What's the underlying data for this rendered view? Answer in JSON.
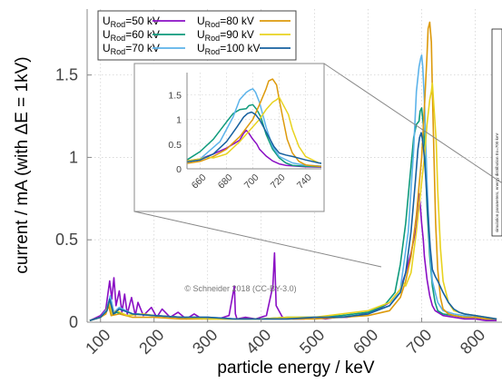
{
  "chart_data": {
    "type": "line",
    "title": "",
    "xlabel": "particle energy / keV",
    "ylabel": "current / mA (with ΔE = 1kV)",
    "xlim": [
      75,
      850
    ],
    "ylim": [
      0,
      1.9
    ],
    "x_ticks": [
      "100",
      "200",
      "300",
      "400",
      "500",
      "600",
      "700",
      "800"
    ],
    "y_ticks": [
      "0",
      "0.5",
      "1",
      "1.5"
    ],
    "grid": true,
    "legend_position": "top-left",
    "legend_columns": 2,
    "credit": "© Schneider 2018 (CC-BY-3.0)",
    "side_note": "simulation parameters, energy distribution Eo=700 keV",
    "series": [
      {
        "key": "50",
        "name_main": "U",
        "name_sub": "Rod",
        "name_value": "=50 kV",
        "color": "#8a0fc4",
        "x": [
          80,
          100,
          110,
          117,
          121,
          125,
          129,
          135,
          140,
          145,
          150,
          158,
          165,
          170,
          180,
          195,
          205,
          215,
          230,
          245,
          260,
          275,
          290,
          300,
          320,
          340,
          350,
          352,
          355,
          370,
          390,
          410,
          422,
          425,
          428,
          440,
          460,
          480,
          500,
          520,
          540,
          560,
          580,
          600,
          620,
          640,
          660,
          670,
          680,
          685,
          690,
          693,
          695,
          697,
          700,
          703,
          705,
          710,
          715,
          720,
          725,
          730,
          740,
          760,
          780,
          800,
          820,
          840
        ],
        "y": [
          0.01,
          0.04,
          0.08,
          0.25,
          0.14,
          0.27,
          0.1,
          0.19,
          0.06,
          0.17,
          0.05,
          0.15,
          0.04,
          0.12,
          0.04,
          0.09,
          0.03,
          0.08,
          0.03,
          0.06,
          0.02,
          0.05,
          0.02,
          0.03,
          0.02,
          0.04,
          0.22,
          0.05,
          0.02,
          0.03,
          0.02,
          0.04,
          0.22,
          0.42,
          0.1,
          0.03,
          0.02,
          0.02,
          0.03,
          0.02,
          0.03,
          0.03,
          0.04,
          0.06,
          0.08,
          0.12,
          0.2,
          0.3,
          0.42,
          0.5,
          0.58,
          0.72,
          0.78,
          0.72,
          0.6,
          0.5,
          0.4,
          0.26,
          0.16,
          0.1,
          0.07,
          0.06,
          0.04,
          0.03,
          0.02,
          0.02,
          0.01,
          0.01
        ]
      },
      {
        "key": "60",
        "name_main": "U",
        "name_sub": "Rod",
        "name_value": "=60 kV",
        "color": "#0e9a7c",
        "x": [
          80,
          100,
          110,
          115,
          120,
          130,
          150,
          170,
          200,
          250,
          300,
          350,
          400,
          450,
          500,
          550,
          600,
          630,
          650,
          660,
          670,
          680,
          685,
          690,
          695,
          697,
          700,
          703,
          706,
          710,
          715,
          720,
          725,
          730,
          740,
          760,
          780,
          800,
          820,
          840
        ],
        "y": [
          0.01,
          0.03,
          0.06,
          0.12,
          0.04,
          0.06,
          0.04,
          0.05,
          0.04,
          0.03,
          0.02,
          0.02,
          0.02,
          0.03,
          0.03,
          0.04,
          0.06,
          0.1,
          0.18,
          0.35,
          0.6,
          0.95,
          1.12,
          1.2,
          1.22,
          1.28,
          1.3,
          1.2,
          1.05,
          0.7,
          0.4,
          0.22,
          0.12,
          0.07,
          0.05,
          0.04,
          0.03,
          0.03,
          0.02,
          0.02
        ]
      },
      {
        "key": "70",
        "name_main": "U",
        "name_sub": "Rod",
        "name_value": "=70 kV",
        "color": "#5cb3ea",
        "x": [
          80,
          100,
          112,
          118,
          125,
          135,
          160,
          200,
          250,
          300,
          350,
          400,
          450,
          500,
          550,
          600,
          640,
          660,
          675,
          685,
          690,
          695,
          698,
          700,
          702,
          705,
          710,
          715,
          720,
          730,
          740,
          760,
          780,
          800,
          820,
          840
        ],
        "y": [
          0.01,
          0.03,
          0.08,
          0.16,
          0.06,
          0.09,
          0.05,
          0.04,
          0.03,
          0.03,
          0.02,
          0.02,
          0.02,
          0.03,
          0.03,
          0.05,
          0.1,
          0.2,
          0.55,
          1.05,
          1.4,
          1.55,
          1.6,
          1.62,
          1.55,
          1.35,
          0.85,
          0.45,
          0.25,
          0.12,
          0.07,
          0.05,
          0.04,
          0.03,
          0.02,
          0.02
        ]
      },
      {
        "key": "80",
        "name_main": "U",
        "name_sub": "Rod",
        "name_value": "=80 kV",
        "color": "#dd9a0c",
        "x": [
          80,
          100,
          110,
          115,
          120,
          135,
          160,
          200,
          250,
          300,
          350,
          400,
          450,
          500,
          550,
          600,
          640,
          660,
          670,
          680,
          690,
          700,
          705,
          710,
          712,
          715,
          718,
          720,
          723,
          726,
          730,
          735,
          740,
          750,
          760,
          780,
          800,
          820,
          840
        ],
        "y": [
          0.01,
          0.03,
          0.05,
          0.1,
          0.04,
          0.05,
          0.03,
          0.03,
          0.02,
          0.02,
          0.02,
          0.02,
          0.02,
          0.02,
          0.03,
          0.04,
          0.07,
          0.15,
          0.25,
          0.4,
          0.65,
          1.0,
          1.3,
          1.62,
          1.78,
          1.82,
          1.7,
          1.4,
          1.0,
          0.6,
          0.32,
          0.15,
          0.08,
          0.05,
          0.04,
          0.03,
          0.03,
          0.02,
          0.02
        ]
      },
      {
        "key": "90",
        "name_main": "U",
        "name_sub": "Rod",
        "name_value": "=90 kV",
        "color": "#e8d31f",
        "x": [
          80,
          100,
          110,
          116,
          122,
          130,
          150,
          180,
          200,
          250,
          300,
          350,
          400,
          450,
          500,
          550,
          600,
          640,
          660,
          665,
          670,
          675,
          680,
          690,
          700,
          705,
          710,
          715,
          718,
          720,
          723,
          727,
          730,
          735,
          740,
          750,
          760,
          780,
          800,
          820,
          840
        ],
        "y": [
          0.01,
          0.03,
          0.06,
          0.12,
          0.05,
          0.07,
          0.04,
          0.05,
          0.04,
          0.03,
          0.02,
          0.02,
          0.02,
          0.03,
          0.03,
          0.05,
          0.07,
          0.12,
          0.2,
          0.24,
          0.22,
          0.26,
          0.3,
          0.55,
          0.85,
          1.0,
          1.2,
          1.35,
          1.4,
          1.45,
          1.3,
          1.1,
          0.8,
          0.45,
          0.25,
          0.12,
          0.07,
          0.05,
          0.04,
          0.03,
          0.02
        ]
      },
      {
        "key": "100",
        "name_main": "U",
        "name_sub": "Rod",
        "name_value": "=100 kV",
        "color": "#16609f",
        "x": [
          80,
          100,
          112,
          117,
          124,
          135,
          160,
          200,
          250,
          300,
          350,
          400,
          450,
          500,
          550,
          600,
          640,
          660,
          670,
          680,
          688,
          693,
          696,
          699,
          702,
          705,
          708,
          712,
          716,
          720,
          725,
          730,
          740,
          750,
          760,
          770,
          780,
          800,
          820,
          840
        ],
        "y": [
          0.01,
          0.03,
          0.07,
          0.14,
          0.05,
          0.08,
          0.05,
          0.04,
          0.03,
          0.03,
          0.02,
          0.02,
          0.02,
          0.03,
          0.03,
          0.05,
          0.1,
          0.18,
          0.3,
          0.55,
          0.85,
          1.05,
          1.12,
          1.15,
          1.1,
          1.0,
          0.85,
          0.65,
          0.45,
          0.32,
          0.28,
          0.25,
          0.18,
          0.12,
          0.08,
          0.06,
          0.05,
          0.04,
          0.03,
          0.02
        ]
      }
    ],
    "inset": {
      "xlim": [
        650,
        752
      ],
      "ylim": [
        0,
        1.95
      ],
      "x_ticks": [
        "660",
        "680",
        "700",
        "720",
        "740"
      ],
      "y_ticks": [
        "0",
        "0.5",
        "1",
        "1.5"
      ]
    }
  }
}
